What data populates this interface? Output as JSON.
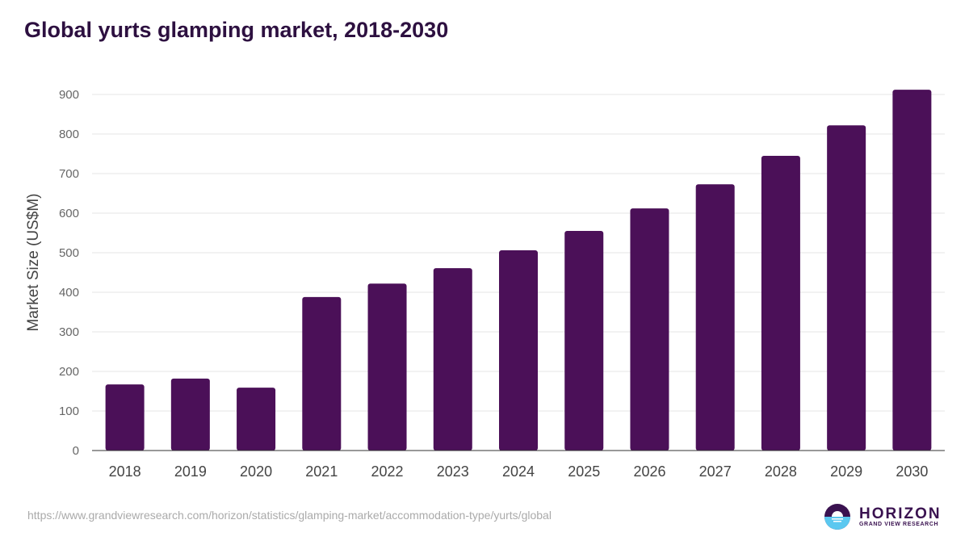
{
  "chart_data": {
    "type": "bar",
    "title": "Global yurts glamping market, 2018-2030",
    "xlabel": "",
    "ylabel": "Market Size (US$M)",
    "ylim": [
      0,
      900
    ],
    "yticks": [
      0,
      100,
      200,
      300,
      400,
      500,
      600,
      700,
      800,
      900
    ],
    "grid": true,
    "categories": [
      "2018",
      "2019",
      "2020",
      "2021",
      "2022",
      "2023",
      "2024",
      "2025",
      "2026",
      "2027",
      "2028",
      "2029",
      "2030"
    ],
    "values": [
      167,
      182,
      159,
      388,
      422,
      461,
      506,
      555,
      612,
      673,
      745,
      822,
      912
    ],
    "bar_color": "#4b1058"
  },
  "source_url": "https://www.grandviewresearch.com/horizon/statistics/glamping-market/accommodation-type/yurts/global",
  "logo": {
    "name": "HORIZON",
    "sub": "GRAND VIEW RESEARCH"
  }
}
